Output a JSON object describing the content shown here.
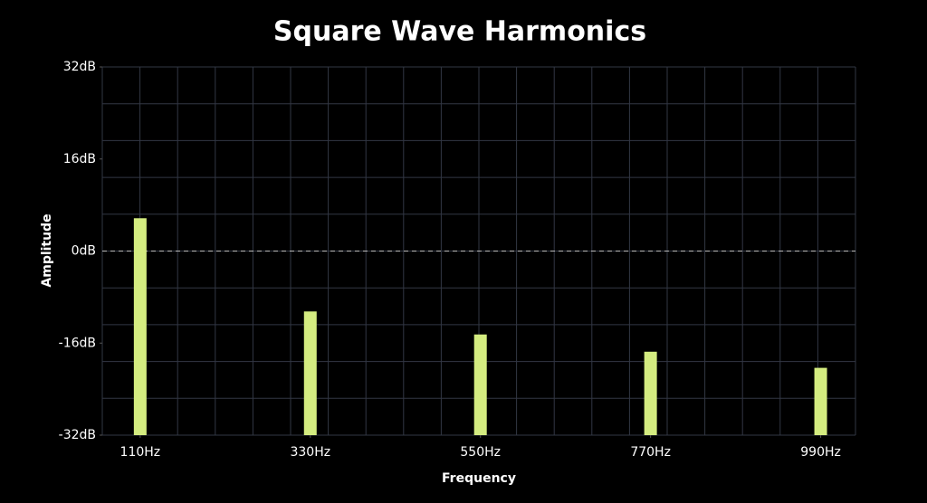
{
  "chart_data": {
    "type": "bar",
    "title": "Square Wave Harmonics",
    "x_label": "Frequency",
    "y_label": "Amplitude",
    "x": [
      110,
      330,
      550,
      770,
      990
    ],
    "values": [
      5.7,
      -10.5,
      -14.5,
      -17.5,
      -20.3
    ],
    "color": "#d4ec80",
    "xlim": [
      61,
      1035
    ],
    "xticks": [
      {
        "value": 110,
        "label": "110Hz"
      },
      {
        "value": 330,
        "label": "330Hz"
      },
      {
        "value": 550,
        "label": "550Hz"
      },
      {
        "value": 770,
        "label": "770Hz"
      },
      {
        "value": 990,
        "label": "990Hz"
      }
    ],
    "ylim": [
      -32,
      32
    ],
    "yticks": [
      {
        "value": -32,
        "label": "-32dB"
      },
      {
        "value": -16,
        "label": "-16dB"
      },
      {
        "value": 0,
        "label": "0dB"
      },
      {
        "value": 16,
        "label": "16dB"
      },
      {
        "value": 32,
        "label": "32dB"
      }
    ],
    "grid": true
  }
}
